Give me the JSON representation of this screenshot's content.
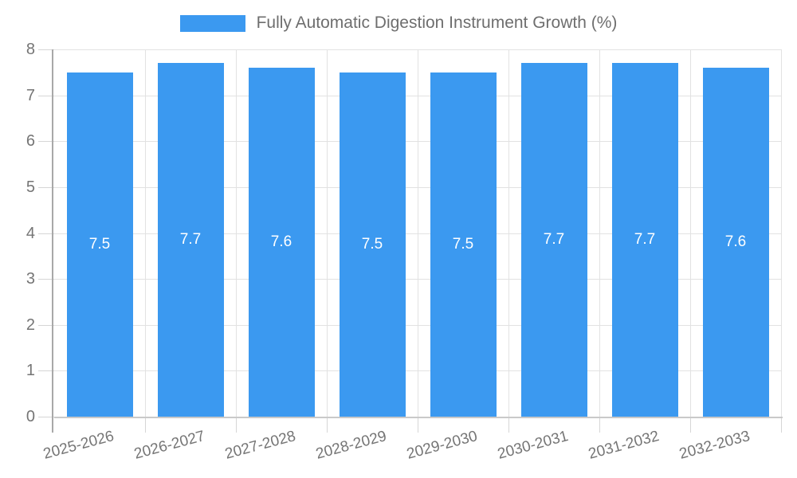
{
  "chart_data": {
    "type": "bar",
    "title": "Fully Automatic Digestion Instrument Growth (%)",
    "legend_position": "top-center",
    "categories": [
      "2025-2026",
      "2026-2027",
      "2027-2028",
      "2028-2029",
      "2029-2030",
      "2030-2031",
      "2031-2032",
      "2032-2033"
    ],
    "values": [
      7.5,
      7.7,
      7.6,
      7.5,
      7.5,
      7.7,
      7.7,
      7.6
    ],
    "value_labels": [
      "7.5",
      "7.7",
      "7.6",
      "7.5",
      "7.5",
      "7.7",
      "7.7",
      "7.6"
    ],
    "ylim": [
      0,
      8
    ],
    "ytick_step": 1,
    "ytick_labels": [
      "0",
      "1",
      "2",
      "3",
      "4",
      "5",
      "6",
      "7",
      "8"
    ],
    "grid": true,
    "x_label_rotation_deg": -15,
    "colors": {
      "bar": "#3B99F0",
      "value_label": "#ffffff",
      "axis_label": "#757575",
      "legend_label": "#6e6e6e",
      "grid_line": "#e2e2e2",
      "axis_line": "#a8a8a8",
      "bottom_axis_line": "#c9c9c9",
      "tick": "#d6d6d6",
      "background": "#ffffff"
    }
  }
}
